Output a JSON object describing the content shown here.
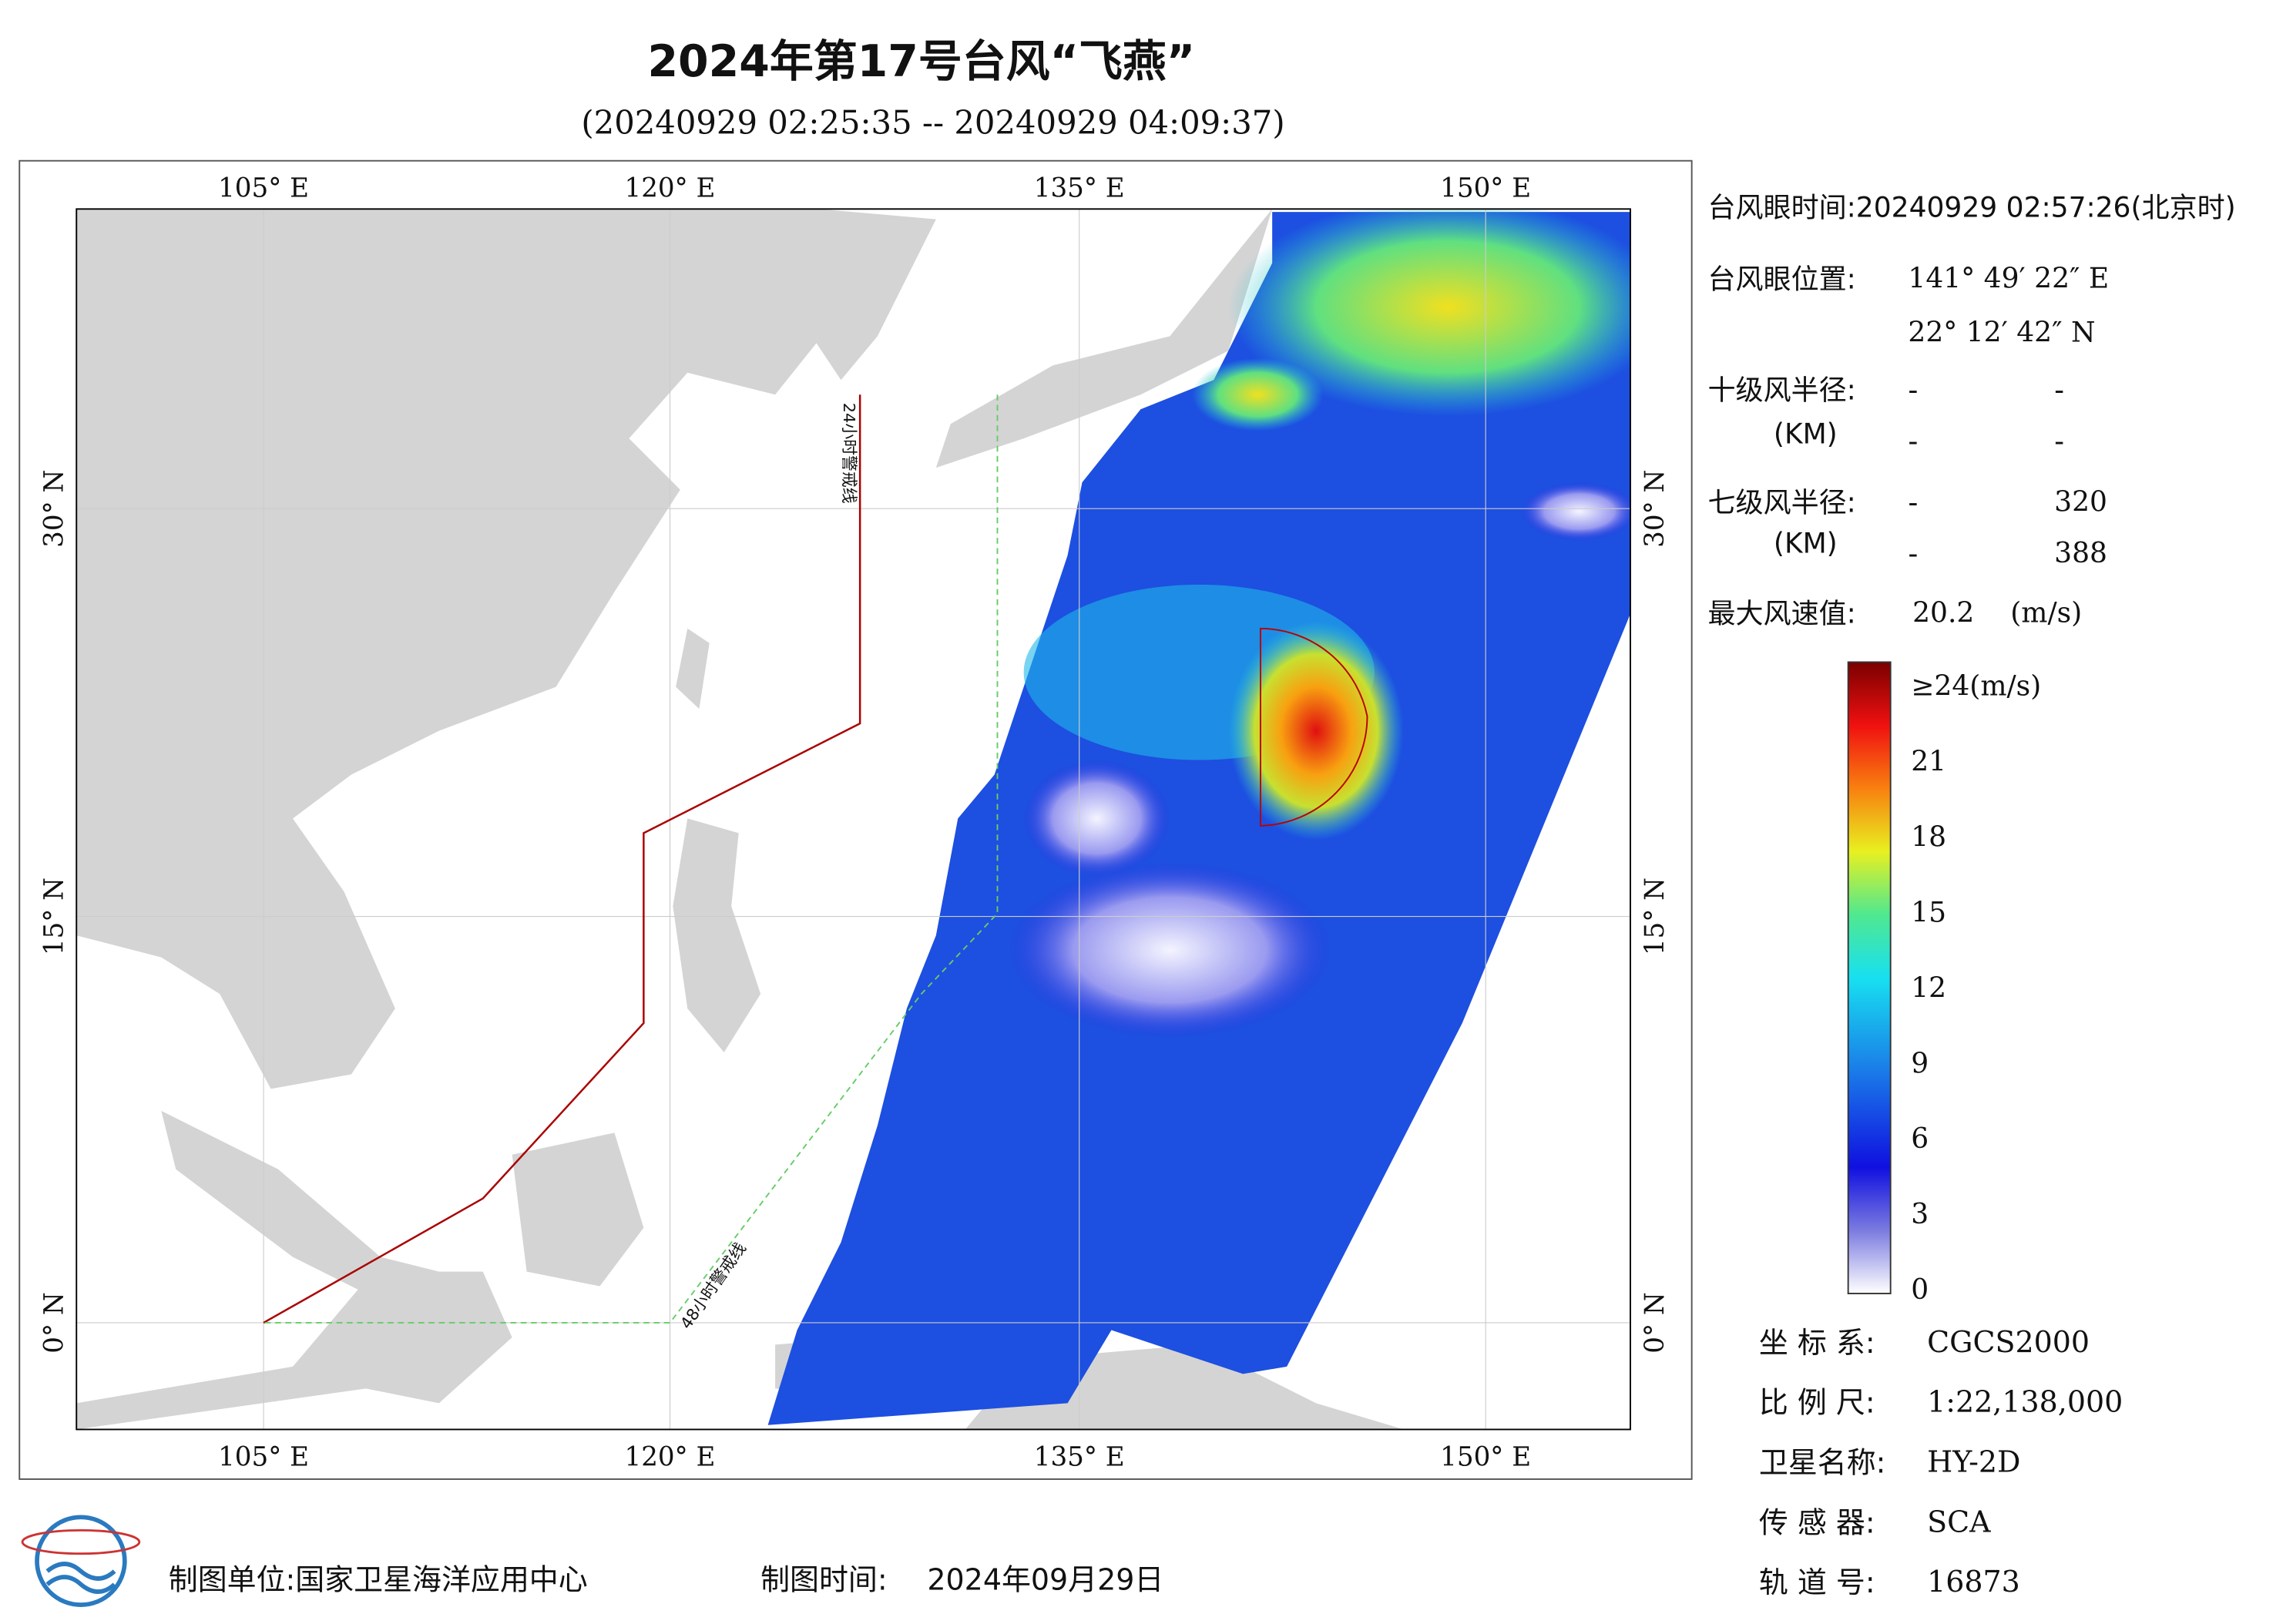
{
  "header": {
    "title": "2024年第17号台风“飞燕”",
    "subtitle": "(20240929 02:25:35 -- 20240929 04:09:37)"
  },
  "map": {
    "lon_labels": [
      "105° E",
      "120° E",
      "135° E",
      "150° E"
    ],
    "lat_labels": [
      "30° N",
      "15° N",
      "0° N"
    ],
    "warning_24": "24小时警戒线",
    "warning_48": "48小时警戒线"
  },
  "info": {
    "eye_time": "台风眼时间:20240929 02:57:26(北京时)",
    "eye_pos_label": "台风眼位置:",
    "eye_lon": "141° 49′ 22″ E",
    "eye_lat": "22° 12′ 42″ N",
    "r10_label": "十级风半径:",
    "r10_unit": "(KM)",
    "r10": [
      [
        "-",
        "-"
      ],
      [
        "-",
        "-"
      ]
    ],
    "r7_label": "七级风半径:",
    "r7_unit": "(KM)",
    "r7": [
      [
        "-",
        "320"
      ],
      [
        "-",
        "388"
      ]
    ],
    "max_label": "最大风速值:",
    "max_value": "20.2",
    "max_unit": "(m/s)"
  },
  "colorbar": {
    "labels": [
      "≥24(m/s)",
      "21",
      "18",
      "15",
      "12",
      "9",
      "6",
      "3",
      "0"
    ]
  },
  "meta": [
    {
      "label": "坐 标 系:",
      "value": "CGCS2000"
    },
    {
      "label": "比 例 尺:",
      "value": "1:22,138,000"
    },
    {
      "label": "卫星名称:",
      "value": "HY-2D"
    },
    {
      "label": "传 感 器:",
      "value": "SCA"
    },
    {
      "label": "轨 道 号:",
      "value": "16873"
    }
  ],
  "footer": {
    "unit": "制图单位:国家卫星海洋应用中心",
    "time_label": "制图时间:",
    "time": "2024年09月29日"
  }
}
